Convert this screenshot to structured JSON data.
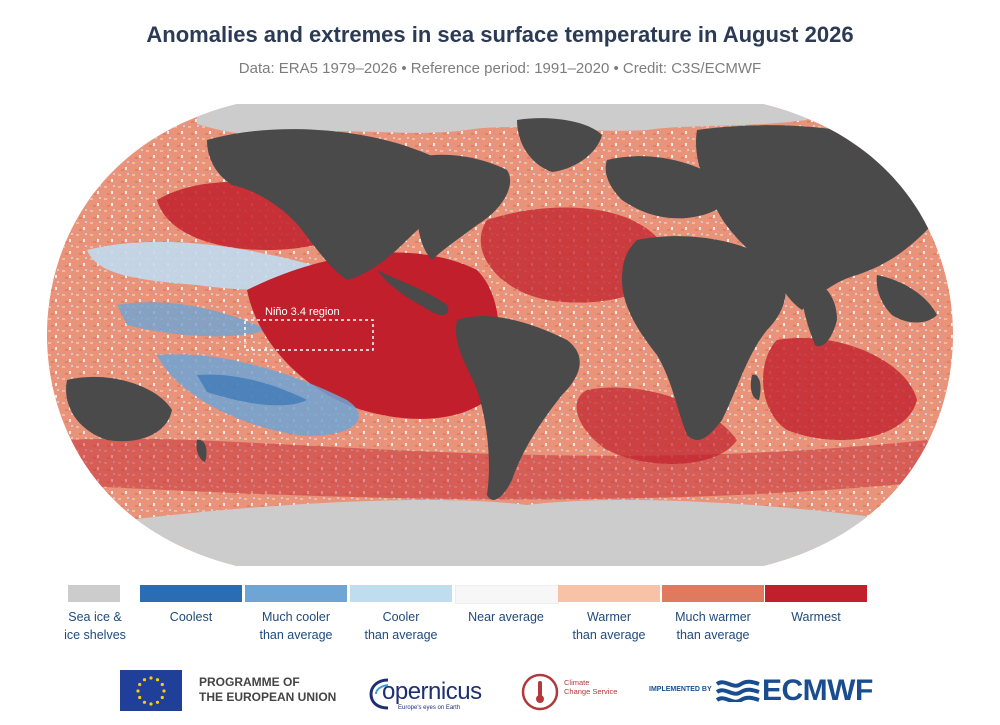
{
  "header": {
    "title": "Anomalies and extremes in sea surface temperature in August 2026",
    "subtitle": "Data: ERA5 1979–2026 • Reference period: 1991–2020 • Credit: C3S/ECMWF"
  },
  "map": {
    "projection": "robinson",
    "region_label": "Niño 3.4 region",
    "colors": {
      "land": "#4a4a4a",
      "sea_ice": "#cccccc",
      "coolest": "#2b6db3",
      "much_cooler": "#6ea5d4",
      "cooler": "#c0dcef",
      "near_average": "#f7f7f7",
      "warmer": "#f7c2a6",
      "much_warmer": "#e07a5f",
      "warmest": "#c11f2c"
    }
  },
  "legend": {
    "items": [
      {
        "label_1": "Sea ice &",
        "label_2": "ice shelves",
        "color": "#cccccc"
      },
      {
        "label_1": "Coolest",
        "label_2": "",
        "color": "#2b6db3"
      },
      {
        "label_1": "Much cooler",
        "label_2": "than average",
        "color": "#6ea5d4"
      },
      {
        "label_1": "Cooler",
        "label_2": "than average",
        "color": "#c0dcef"
      },
      {
        "label_1": "Near average",
        "label_2": "",
        "color": "#f7f7f7"
      },
      {
        "label_1": "Warmer",
        "label_2": "than average",
        "color": "#f7c2a6"
      },
      {
        "label_1": "Much warmer",
        "label_2": "than average",
        "color": "#e07a5f"
      },
      {
        "label_1": "Warmest",
        "label_2": "",
        "color": "#c11f2c"
      }
    ]
  },
  "footer": {
    "programme_line1": "PROGRAMME OF",
    "programme_line2": "THE EUROPEAN UNION",
    "copernicus": "opernicus",
    "copernicus_tagline": "Europe's eyes on Earth",
    "c3s_line1": "Climate",
    "c3s_line2": "Change Service",
    "implemented_by": "IMPLEMENTED BY",
    "ecmwf": "ECMWF"
  }
}
